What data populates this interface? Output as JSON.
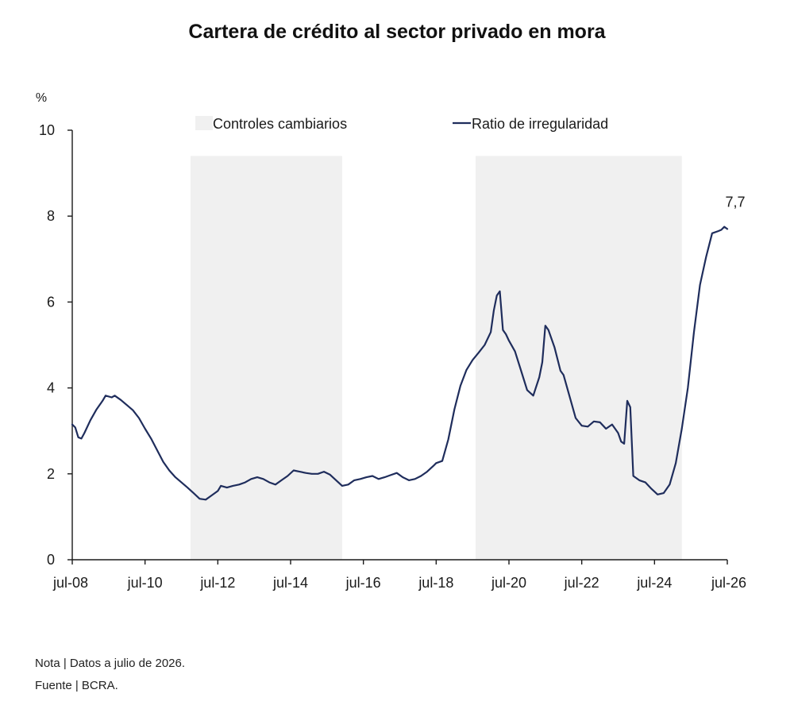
{
  "chart_data": {
    "type": "line",
    "title": "Cartera de crédito al sector privado en mora",
    "ylabel": "%",
    "ylim": [
      0,
      10
    ],
    "yticks": [
      0,
      2,
      4,
      6,
      8,
      10
    ],
    "xlim": [
      "2008-07",
      "2026-07"
    ],
    "xtick_labels": [
      "jul-08",
      "jul-10",
      "jul-12",
      "jul-14",
      "jul-16",
      "jul-18",
      "jul-20",
      "jul-22",
      "jul-24",
      "jul-26"
    ],
    "grid": false,
    "legend_position": "top",
    "legend": [
      {
        "label": "Controles cambiarios",
        "kind": "band",
        "color": "#f0f0f0"
      },
      {
        "label": "Ratio de irregularidad",
        "kind": "line",
        "color": "#1f2d5c"
      }
    ],
    "shaded_periods": [
      {
        "label": "Controles cambiarios",
        "start": "2011-10",
        "end": "2015-12"
      },
      {
        "label": "Controles cambiarios",
        "start": "2019-08",
        "end": "2025-04"
      }
    ],
    "series": [
      {
        "name": "Ratio de irregularidad",
        "color": "#1f2d5c",
        "points": [
          [
            "2008-07",
            3.15
          ],
          [
            "2008-08",
            3.08
          ],
          [
            "2008-09",
            2.85
          ],
          [
            "2008-10",
            2.82
          ],
          [
            "2008-11",
            2.95
          ],
          [
            "2009-01",
            3.25
          ],
          [
            "2009-03",
            3.5
          ],
          [
            "2009-05",
            3.7
          ],
          [
            "2009-06",
            3.82
          ],
          [
            "2009-08",
            3.78
          ],
          [
            "2009-09",
            3.82
          ],
          [
            "2009-11",
            3.72
          ],
          [
            "2010-01",
            3.6
          ],
          [
            "2010-03",
            3.48
          ],
          [
            "2010-05",
            3.3
          ],
          [
            "2010-07",
            3.05
          ],
          [
            "2010-09",
            2.82
          ],
          [
            "2010-11",
            2.55
          ],
          [
            "2011-01",
            2.28
          ],
          [
            "2011-03",
            2.08
          ],
          [
            "2011-05",
            1.92
          ],
          [
            "2011-07",
            1.8
          ],
          [
            "2011-09",
            1.68
          ],
          [
            "2011-11",
            1.55
          ],
          [
            "2012-01",
            1.42
          ],
          [
            "2012-03",
            1.4
          ],
          [
            "2012-05",
            1.5
          ],
          [
            "2012-07",
            1.6
          ],
          [
            "2012-08",
            1.72
          ],
          [
            "2012-10",
            1.68
          ],
          [
            "2012-12",
            1.72
          ],
          [
            "2013-02",
            1.75
          ],
          [
            "2013-04",
            1.8
          ],
          [
            "2013-06",
            1.88
          ],
          [
            "2013-08",
            1.92
          ],
          [
            "2013-10",
            1.88
          ],
          [
            "2013-12",
            1.8
          ],
          [
            "2014-02",
            1.75
          ],
          [
            "2014-04",
            1.85
          ],
          [
            "2014-06",
            1.95
          ],
          [
            "2014-08",
            2.08
          ],
          [
            "2014-10",
            2.05
          ],
          [
            "2014-12",
            2.02
          ],
          [
            "2015-02",
            2.0
          ],
          [
            "2015-04",
            2.0
          ],
          [
            "2015-06",
            2.05
          ],
          [
            "2015-08",
            1.98
          ],
          [
            "2015-10",
            1.85
          ],
          [
            "2015-12",
            1.72
          ],
          [
            "2016-02",
            1.75
          ],
          [
            "2016-04",
            1.85
          ],
          [
            "2016-06",
            1.88
          ],
          [
            "2016-08",
            1.92
          ],
          [
            "2016-10",
            1.95
          ],
          [
            "2016-12",
            1.88
          ],
          [
            "2017-02",
            1.92
          ],
          [
            "2017-04",
            1.97
          ],
          [
            "2017-06",
            2.02
          ],
          [
            "2017-08",
            1.92
          ],
          [
            "2017-10",
            1.85
          ],
          [
            "2017-12",
            1.88
          ],
          [
            "2018-02",
            1.95
          ],
          [
            "2018-04",
            2.05
          ],
          [
            "2018-06",
            2.18
          ],
          [
            "2018-07",
            2.25
          ],
          [
            "2018-09",
            2.3
          ],
          [
            "2018-11",
            2.8
          ],
          [
            "2019-01",
            3.5
          ],
          [
            "2019-03",
            4.05
          ],
          [
            "2019-05",
            4.42
          ],
          [
            "2019-07",
            4.65
          ],
          [
            "2019-09",
            4.82
          ],
          [
            "2019-11",
            5.0
          ],
          [
            "2020-01",
            5.3
          ],
          [
            "2020-02",
            5.8
          ],
          [
            "2020-03",
            6.15
          ],
          [
            "2020-04",
            6.25
          ],
          [
            "2020-05",
            5.35
          ],
          [
            "2020-06",
            5.25
          ],
          [
            "2020-07",
            5.1
          ],
          [
            "2020-09",
            4.85
          ],
          [
            "2020-11",
            4.4
          ],
          [
            "2021-01",
            3.95
          ],
          [
            "2021-03",
            3.82
          ],
          [
            "2021-05",
            4.25
          ],
          [
            "2021-06",
            4.6
          ],
          [
            "2021-07",
            5.45
          ],
          [
            "2021-08",
            5.35
          ],
          [
            "2021-10",
            4.95
          ],
          [
            "2021-12",
            4.4
          ],
          [
            "2022-01",
            4.3
          ],
          [
            "2022-03",
            3.8
          ],
          [
            "2022-05",
            3.3
          ],
          [
            "2022-07",
            3.12
          ],
          [
            "2022-09",
            3.1
          ],
          [
            "2022-11",
            3.22
          ],
          [
            "2023-01",
            3.2
          ],
          [
            "2023-03",
            3.05
          ],
          [
            "2023-05",
            3.15
          ],
          [
            "2023-07",
            2.95
          ],
          [
            "2023-08",
            2.75
          ],
          [
            "2023-09",
            2.7
          ],
          [
            "2023-10",
            3.7
          ],
          [
            "2023-11",
            3.55
          ],
          [
            "2023-12",
            1.95
          ],
          [
            "2024-02",
            1.85
          ],
          [
            "2024-04",
            1.8
          ],
          [
            "2024-06",
            1.65
          ],
          [
            "2024-08",
            1.52
          ],
          [
            "2024-10",
            1.55
          ],
          [
            "2024-12",
            1.75
          ],
          [
            "2025-02",
            2.25
          ],
          [
            "2025-04",
            3.05
          ],
          [
            "2025-06",
            4.0
          ],
          [
            "2025-08",
            5.3
          ],
          [
            "2025-10",
            6.4
          ],
          [
            "2025-12",
            7.05
          ],
          [
            "2026-02",
            7.6
          ],
          [
            "2026-04",
            7.65
          ],
          [
            "2026-05",
            7.68
          ],
          [
            "2026-06",
            7.75
          ],
          [
            "2026-07",
            7.7
          ]
        ]
      }
    ],
    "annotations": [
      {
        "text": "7,7",
        "x": "2026-07",
        "y": 7.7
      }
    ]
  },
  "footer": {
    "note": "Nota | Datos a julio de 2026.",
    "source": "Fuente | BCRA."
  }
}
